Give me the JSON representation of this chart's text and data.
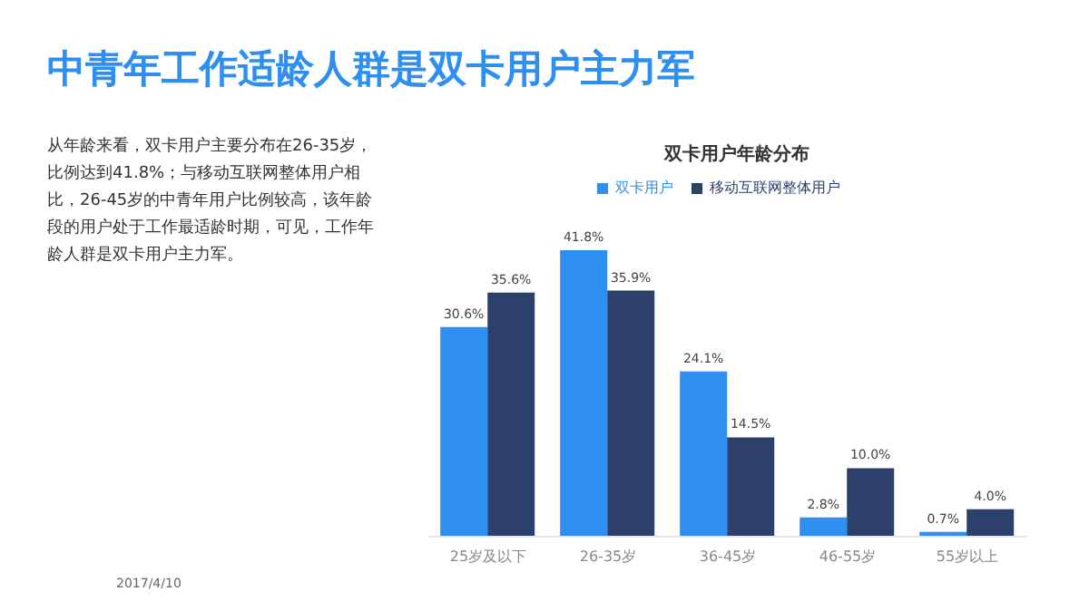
{
  "chart_data": {
    "type": "bar",
    "title": "中青年工作适龄人群是双卡用户主力军",
    "subtitle": "双卡用户年龄分布",
    "categories": [
      "25岁及以下",
      "26-35岁",
      "36-45岁",
      "46-55岁",
      "55岁以上"
    ],
    "series": [
      {
        "name": "双卡用户",
        "color": "#2e8ff0",
        "values": [
          30.6,
          41.8,
          24.1,
          2.8,
          0.7
        ],
        "value_labels": [
          "30.6%",
          "41.8%",
          "24.1%",
          "2.8%",
          "0.7%"
        ]
      },
      {
        "name": "移动互联网整体用户",
        "color": "#2d3f6b",
        "values": [
          35.6,
          35.9,
          14.5,
          10.0,
          4.0
        ],
        "value_labels": [
          "35.6%",
          "35.9%",
          "14.5%",
          "10.0%",
          "4.0%"
        ]
      }
    ],
    "legend": "top",
    "grid": false,
    "annotations": [
      "从年龄来看，双卡用户主要分布在26-35岁，比例达到41.8%；与移动互联网整体用户相比，26-45岁的中青年用户比例较高，该年龄段的用户处于工作最适龄时期，可见，工作年龄人群是双卡用户主力军。",
      "2017/4/10"
    ]
  }
}
